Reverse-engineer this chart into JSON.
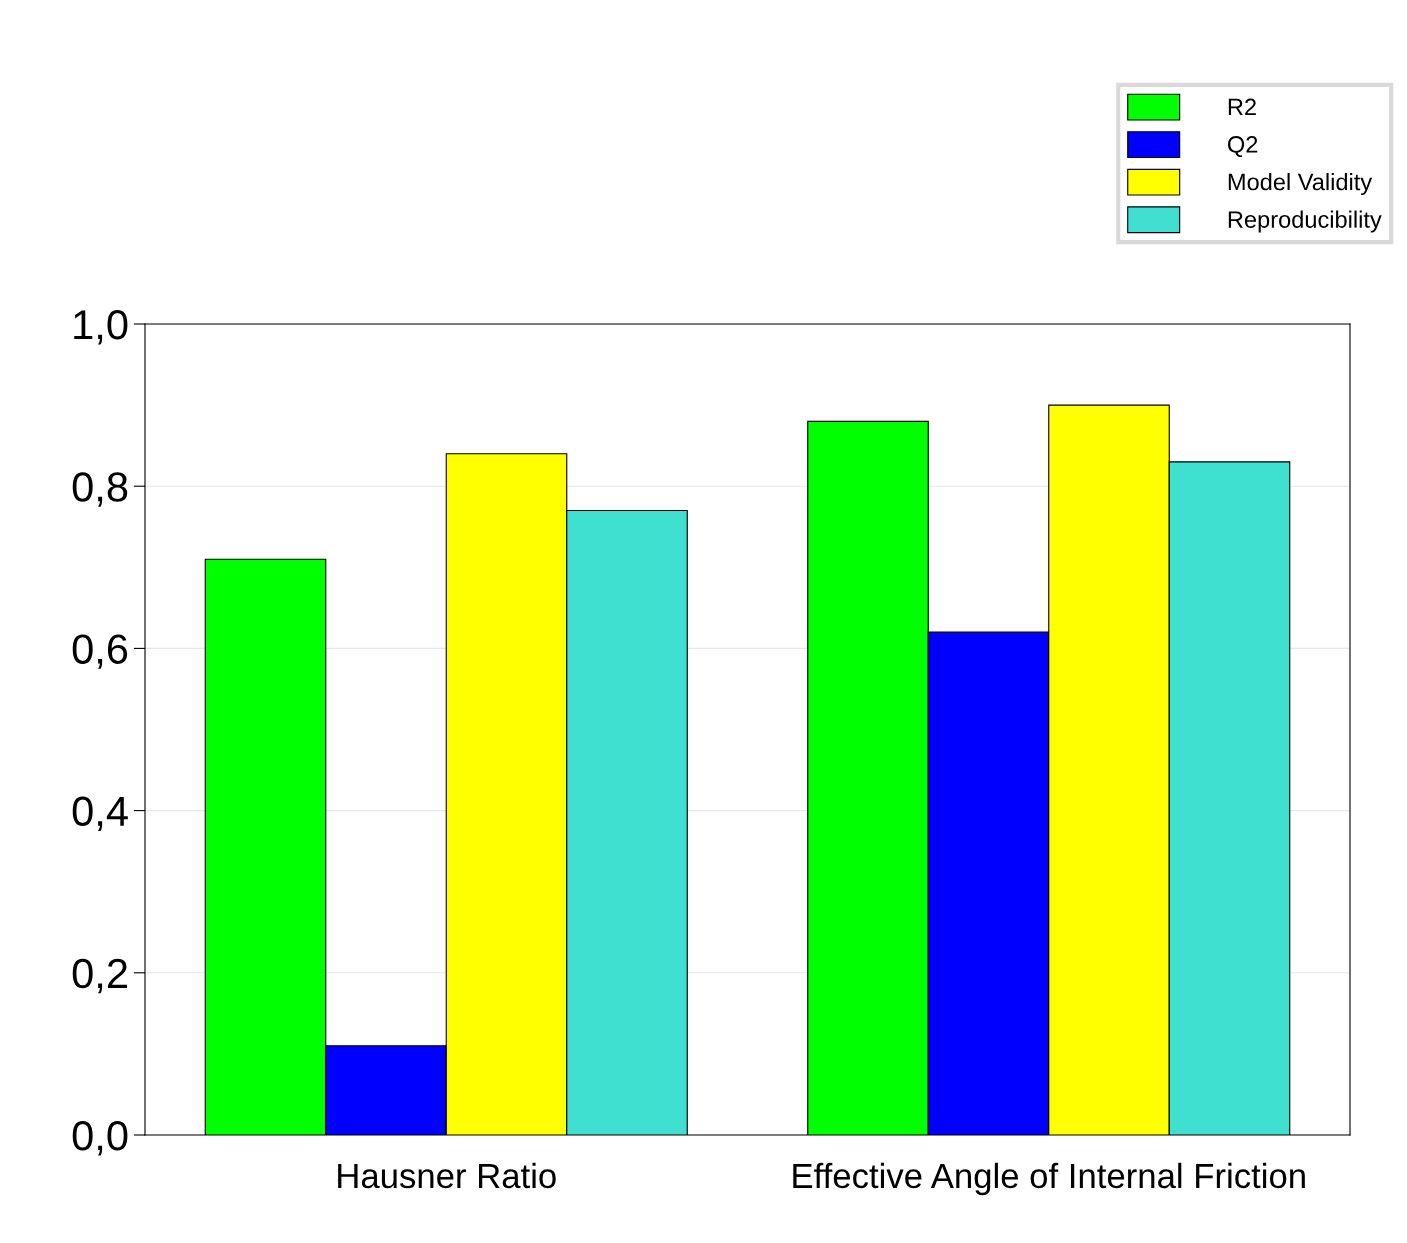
{
  "chart_data": {
    "type": "bar",
    "categories": [
      "Hausner Ratio",
      "Effective Angle of Internal Friction"
    ],
    "series": [
      {
        "name": "R2",
        "color": "#00ff00",
        "values": [
          0.71,
          0.88
        ]
      },
      {
        "name": "Q2",
        "color": "#0000ff",
        "values": [
          0.11,
          0.62
        ]
      },
      {
        "name": "Model Validity",
        "color": "#ffff00",
        "values": [
          0.84,
          0.9
        ]
      },
      {
        "name": "Reproducibility",
        "color": "#40e0d0",
        "values": [
          0.77,
          0.83
        ]
      }
    ],
    "ylim": [
      0,
      1.0
    ],
    "yticks": [
      {
        "value": 0,
        "label": "0,0"
      },
      {
        "value": 0.2,
        "label": "0,2"
      },
      {
        "value": 0.4,
        "label": "0,4"
      },
      {
        "value": 0.6,
        "label": "0,6"
      },
      {
        "value": 0.8,
        "label": "0,8"
      },
      {
        "value": 1.0,
        "label": "1,0"
      }
    ],
    "grid": "y",
    "legend": "top right"
  }
}
